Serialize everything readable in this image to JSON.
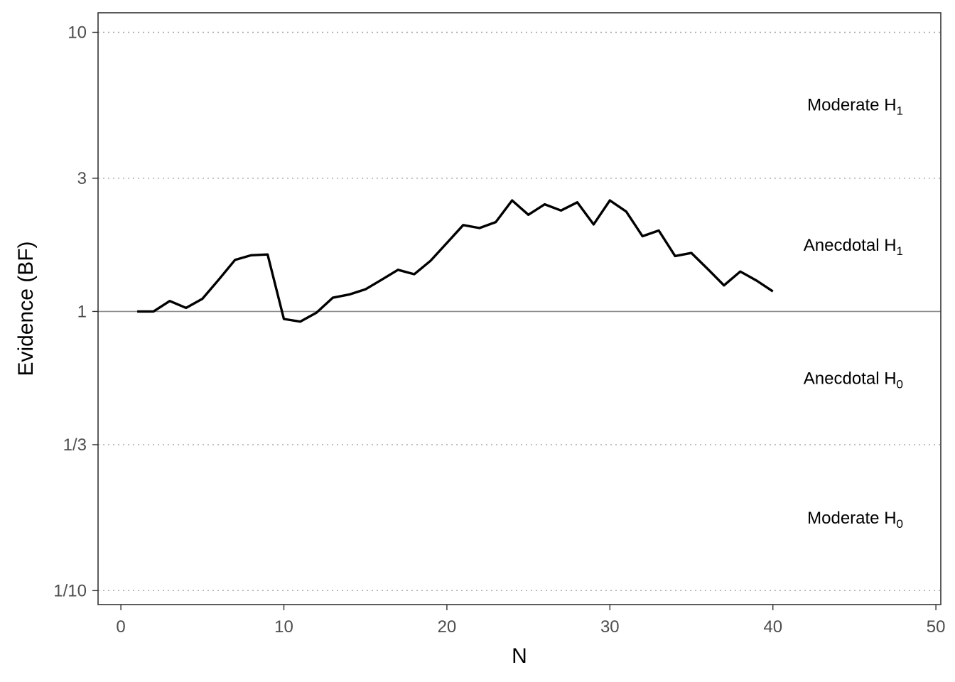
{
  "chart_data": {
    "type": "line",
    "xlabel": "N",
    "ylabel": "Evidence (BF)",
    "xlim": [
      -1.4,
      50.3
    ],
    "ylim_log10": [
      -1.05,
      1.07
    ],
    "y_scale": "log",
    "grid": "dotted horizontal at BF thresholds",
    "x_ticks": [
      {
        "value": 0,
        "label": "0"
      },
      {
        "value": 10,
        "label": "10"
      },
      {
        "value": 20,
        "label": "20"
      },
      {
        "value": 30,
        "label": "30"
      },
      {
        "value": 40,
        "label": "40"
      },
      {
        "value": 50,
        "label": "50"
      }
    ],
    "y_ticks": [
      {
        "value": 10,
        "label": "10"
      },
      {
        "value": 3,
        "label": "3"
      },
      {
        "value": 1,
        "label": "1"
      },
      {
        "value": 0.3333,
        "label": "1/3"
      },
      {
        "value": 0.1,
        "label": "1/10"
      }
    ],
    "reference_line": 1,
    "annotations": [
      {
        "text": "Moderate H",
        "sub": "1",
        "y": 5.5
      },
      {
        "text": "Anecdotal H",
        "sub": "1",
        "y": 1.73
      },
      {
        "text": "Anecdotal H",
        "sub": "0",
        "y": 0.577
      },
      {
        "text": "Moderate H",
        "sub": "0",
        "y": 0.182
      }
    ],
    "series": [
      {
        "x": [
          1,
          2,
          3,
          4,
          5,
          6,
          7,
          8,
          9,
          10,
          11,
          12,
          13,
          14,
          15,
          16,
          17,
          18,
          19,
          20,
          21,
          22,
          23,
          24,
          25,
          26,
          27,
          28,
          29,
          30,
          31,
          32,
          33,
          34,
          35,
          36,
          37,
          38,
          39,
          40
        ],
        "values": [
          1.0,
          1.0,
          1.09,
          1.03,
          1.11,
          1.3,
          1.53,
          1.59,
          1.6,
          0.94,
          0.92,
          0.99,
          1.12,
          1.15,
          1.2,
          1.3,
          1.41,
          1.36,
          1.52,
          1.76,
          2.04,
          1.99,
          2.09,
          2.5,
          2.22,
          2.42,
          2.3,
          2.46,
          2.05,
          2.5,
          2.28,
          1.86,
          1.95,
          1.58,
          1.62,
          1.42,
          1.24,
          1.39,
          1.29,
          1.18
        ],
        "color": "#000000"
      }
    ],
    "colors": {
      "line": "#000000",
      "grid": "#a6a6a6",
      "ref_line": "#8c8c8c",
      "frame": "#333333"
    }
  }
}
